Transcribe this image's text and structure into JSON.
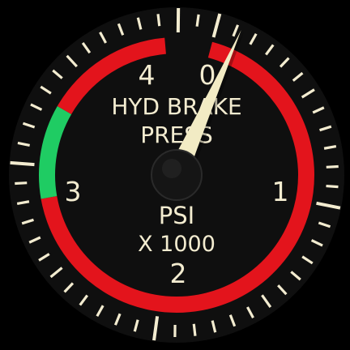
{
  "gauge": {
    "title_line1": "HYD BRAKE",
    "title_line2": "PRESS",
    "unit_line1": "PSI",
    "unit_line2": "X 1000",
    "scale_labels": [
      "0",
      "1",
      "2",
      "3",
      "4"
    ],
    "scale_min": 0,
    "scale_max": 4,
    "needle_value": 0.1,
    "colors": {
      "background": "#000000",
      "face": "#0f0f0f",
      "tick": "#f3ecd0",
      "red_band": "#e3141c",
      "green_band": "#1fcc63",
      "needle": "#f2ebc4"
    }
  }
}
